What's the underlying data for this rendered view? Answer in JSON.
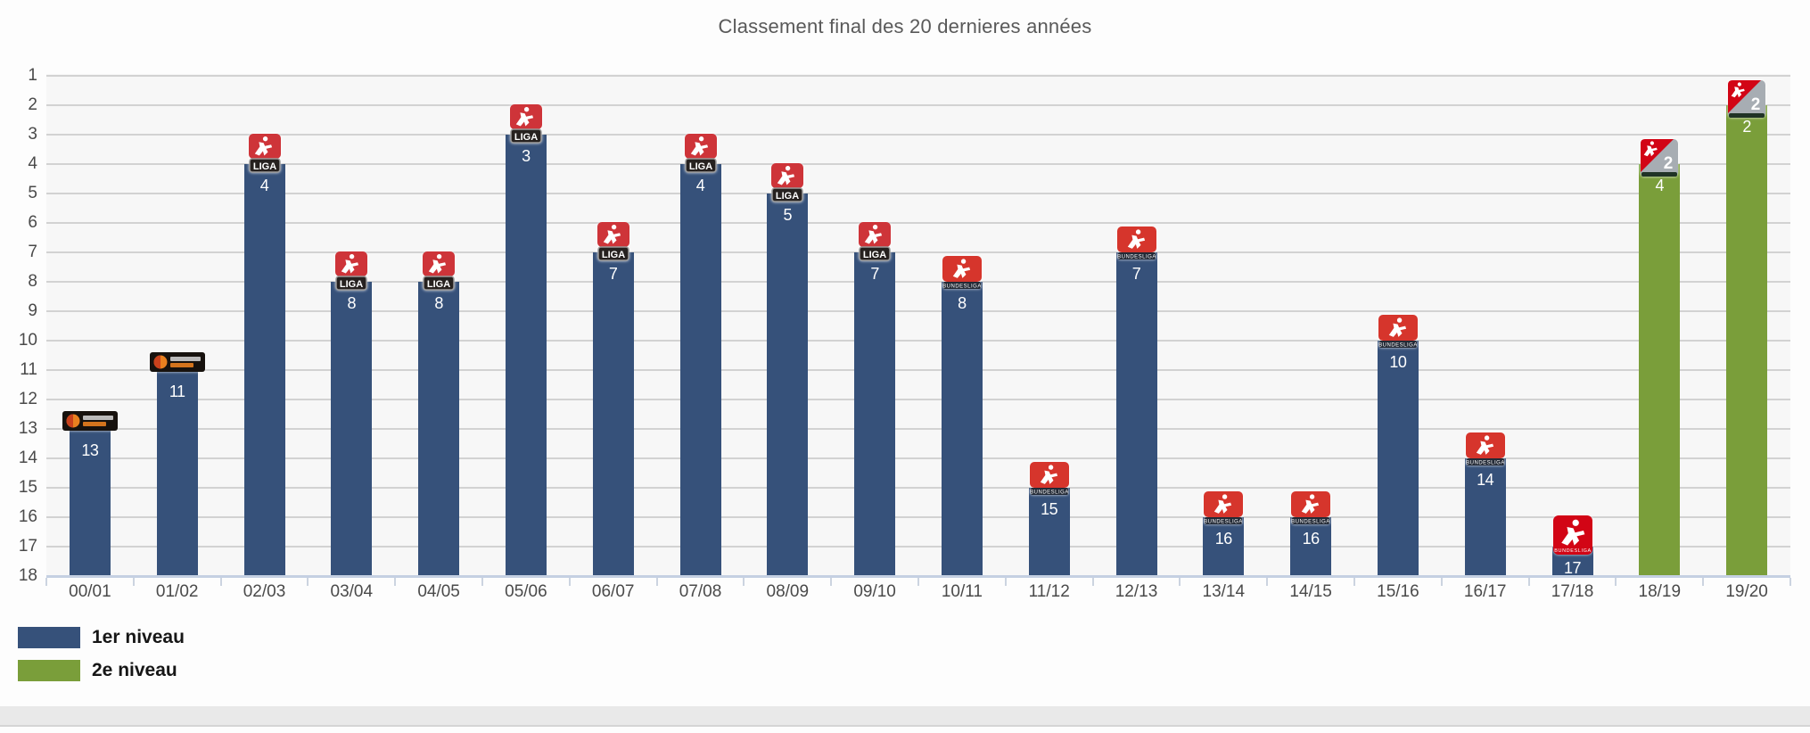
{
  "chart_data": {
    "type": "bar",
    "title": "Classement final des 20 dernieres années",
    "categories": [
      "00/01",
      "01/02",
      "02/03",
      "03/04",
      "04/05",
      "05/06",
      "06/07",
      "07/08",
      "08/09",
      "09/10",
      "10/11",
      "11/12",
      "12/13",
      "13/14",
      "14/15",
      "15/16",
      "16/17",
      "17/18",
      "18/19",
      "19/20"
    ],
    "values": [
      13,
      11,
      4,
      8,
      8,
      3,
      7,
      4,
      5,
      7,
      8,
      15,
      7,
      16,
      16,
      10,
      14,
      17,
      4,
      2
    ],
    "bars": [
      {
        "season": "00/01",
        "rank": 13,
        "level": 1,
        "logo": "bundesliga-logo-1997"
      },
      {
        "season": "01/02",
        "rank": 11,
        "level": 1,
        "logo": "bundesliga-logo-1997"
      },
      {
        "season": "02/03",
        "rank": 4,
        "level": 1,
        "logo": "bundesliga-logo-2002"
      },
      {
        "season": "03/04",
        "rank": 8,
        "level": 1,
        "logo": "bundesliga-logo-2002"
      },
      {
        "season": "04/05",
        "rank": 8,
        "level": 1,
        "logo": "bundesliga-logo-2002"
      },
      {
        "season": "05/06",
        "rank": 3,
        "level": 1,
        "logo": "bundesliga-logo-2002"
      },
      {
        "season": "06/07",
        "rank": 7,
        "level": 1,
        "logo": "bundesliga-logo-2002"
      },
      {
        "season": "07/08",
        "rank": 4,
        "level": 1,
        "logo": "bundesliga-logo-2002"
      },
      {
        "season": "08/09",
        "rank": 5,
        "level": 1,
        "logo": "bundesliga-logo-2002"
      },
      {
        "season": "09/10",
        "rank": 7,
        "level": 1,
        "logo": "bundesliga-logo-2002"
      },
      {
        "season": "10/11",
        "rank": 8,
        "level": 1,
        "logo": "bundesliga-logo-2010"
      },
      {
        "season": "11/12",
        "rank": 15,
        "level": 1,
        "logo": "bundesliga-logo-2010"
      },
      {
        "season": "12/13",
        "rank": 7,
        "level": 1,
        "logo": "bundesliga-logo-2010"
      },
      {
        "season": "13/14",
        "rank": 16,
        "level": 1,
        "logo": "bundesliga-logo-2010"
      },
      {
        "season": "14/15",
        "rank": 16,
        "level": 1,
        "logo": "bundesliga-logo-2010"
      },
      {
        "season": "15/16",
        "rank": 10,
        "level": 1,
        "logo": "bundesliga-logo-2010"
      },
      {
        "season": "16/17",
        "rank": 14,
        "level": 1,
        "logo": "bundesliga-logo-2010"
      },
      {
        "season": "17/18",
        "rank": 17,
        "level": 1,
        "logo": "bundesliga-logo-2017"
      },
      {
        "season": "18/19",
        "rank": 4,
        "level": 2,
        "logo": "2-bundesliga-logo"
      },
      {
        "season": "19/20",
        "rank": 2,
        "level": 2,
        "logo": "2-bundesliga-logo"
      }
    ],
    "y_axis": {
      "ticks": [
        "1",
        "2",
        "3",
        "4",
        "5",
        "6",
        "7",
        "8",
        "9",
        "10",
        "11",
        "12",
        "13",
        "14",
        "15",
        "16",
        "17",
        "18"
      ],
      "min": 1,
      "max": 18,
      "inverted": true
    },
    "legend": [
      {
        "label": "1er niveau",
        "color": "#36517a"
      },
      {
        "label": "2e niveau",
        "color": "#7a9e3a"
      }
    ],
    "colors": {
      "plot_background": "#f7f7f7",
      "gridline": "#c6c6c6",
      "axis_line": "#c5d0e2",
      "tick_label": "#4a4a4a",
      "title_text": "#595959",
      "bar_value_text": "#ffffff"
    },
    "grid": true,
    "legend_position": "bottom-left"
  }
}
